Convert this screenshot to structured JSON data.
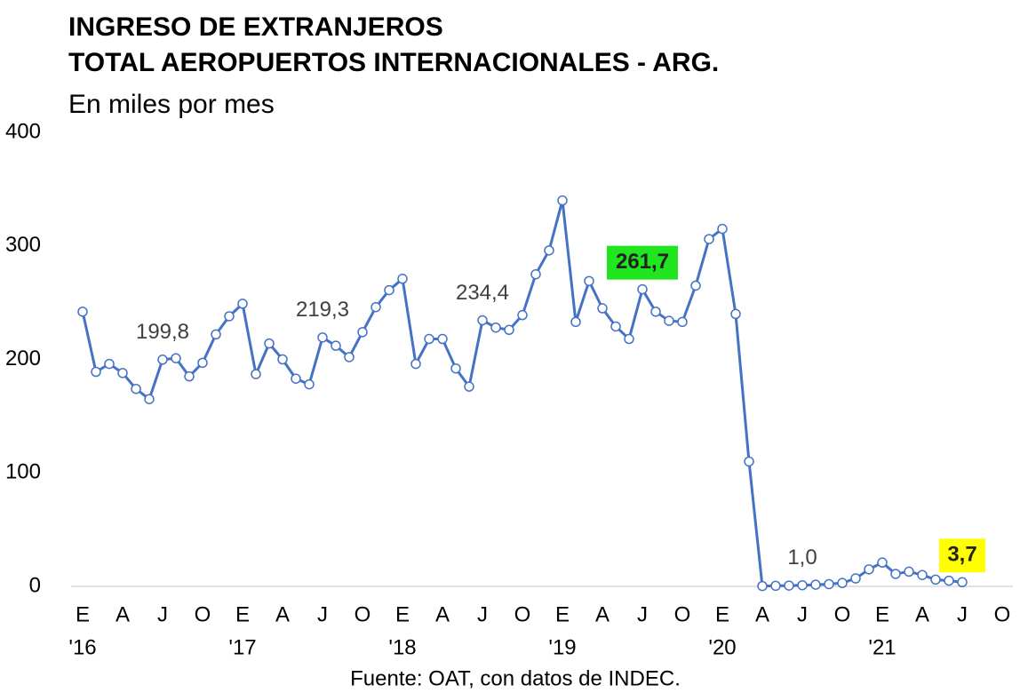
{
  "chart_data": {
    "type": "line",
    "title": "INGRESO DE EXTRANJEROS",
    "title_line2": "TOTAL AEROPUERTOS INTERNACIONALES -  ARG.",
    "subtitle": "En miles por mes",
    "source": "Fuente: OAT, con datos de INDEC.",
    "categories": [
      "E",
      null,
      null,
      "A",
      null,
      null,
      "J",
      null,
      null,
      "O",
      null,
      null,
      "E",
      null,
      null,
      "A",
      null,
      null,
      "J",
      null,
      null,
      "O",
      null,
      null,
      "E",
      null,
      null,
      "A",
      null,
      null,
      "J",
      null,
      null,
      "O",
      null,
      null,
      "E",
      null,
      null,
      "A",
      null,
      null,
      "J",
      null,
      null,
      "O",
      null,
      null,
      "E",
      null,
      null,
      "A",
      null,
      null,
      "J",
      null,
      null,
      "O",
      null,
      null,
      "E",
      null,
      null,
      "A",
      null,
      null,
      "J",
      null,
      null,
      "O"
    ],
    "year_labels": [
      "'16",
      null,
      null,
      null,
      null,
      null,
      null,
      null,
      null,
      null,
      null,
      null,
      "'17",
      null,
      null,
      null,
      null,
      null,
      null,
      null,
      null,
      null,
      null,
      null,
      "'18",
      null,
      null,
      null,
      null,
      null,
      null,
      null,
      null,
      null,
      null,
      null,
      "'19",
      null,
      null,
      null,
      null,
      null,
      null,
      null,
      null,
      null,
      null,
      null,
      "'20",
      null,
      null,
      null,
      null,
      null,
      null,
      null,
      null,
      null,
      null,
      null,
      "'21",
      null,
      null,
      null,
      null,
      null,
      null,
      null,
      null,
      null
    ],
    "series": [
      {
        "name": "Ingreso de extranjeros",
        "color": "#4472c4",
        "values": [
          242,
          189,
          196,
          188,
          174,
          165,
          199.8,
          201,
          185,
          197,
          222,
          238,
          249,
          187,
          214,
          200,
          183,
          178,
          219.3,
          212,
          202,
          224,
          246,
          261,
          271,
          196,
          218,
          218,
          192,
          176,
          234.4,
          228,
          226,
          239,
          275,
          296,
          340,
          233,
          269,
          245,
          229,
          218,
          261.7,
          242,
          234,
          233,
          265,
          306,
          315,
          240,
          110,
          0.3,
          0.5,
          0.7,
          1.0,
          1.5,
          2,
          3,
          7,
          15,
          21,
          11,
          13,
          10,
          6,
          5,
          3.7,
          null,
          null,
          null
        ],
        "value_labels": [
          null,
          null,
          null,
          null,
          null,
          null,
          "199,8",
          null,
          null,
          null,
          null,
          null,
          null,
          null,
          null,
          null,
          null,
          null,
          "219,3",
          null,
          null,
          null,
          null,
          null,
          null,
          null,
          null,
          null,
          null,
          null,
          "234,4",
          null,
          null,
          null,
          null,
          null,
          null,
          null,
          null,
          null,
          null,
          null,
          "261,7",
          null,
          null,
          null,
          null,
          null,
          null,
          null,
          null,
          null,
          null,
          null,
          "1,0",
          null,
          null,
          null,
          null,
          null,
          null,
          null,
          null,
          null,
          null,
          null,
          "3,7",
          null,
          null,
          null
        ],
        "value_label_bg": [
          null,
          null,
          null,
          null,
          null,
          null,
          null,
          null,
          null,
          null,
          null,
          null,
          null,
          null,
          null,
          null,
          null,
          null,
          null,
          null,
          null,
          null,
          null,
          null,
          null,
          null,
          null,
          null,
          null,
          null,
          null,
          null,
          null,
          null,
          null,
          null,
          null,
          null,
          null,
          null,
          null,
          null,
          "#1fe61f",
          null,
          null,
          null,
          null,
          null,
          null,
          null,
          null,
          null,
          null,
          null,
          null,
          null,
          null,
          null,
          null,
          null,
          null,
          null,
          null,
          null,
          null,
          null,
          "#ffff00",
          null,
          null,
          null
        ]
      }
    ],
    "ylim": [
      0,
      400
    ],
    "yticks": [
      0,
      100,
      200,
      300,
      400
    ],
    "grid": false
  }
}
